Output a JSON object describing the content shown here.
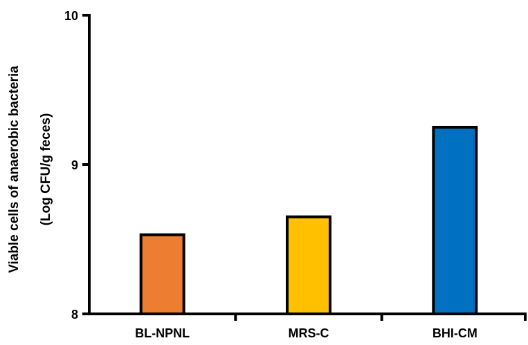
{
  "chart_data": {
    "type": "bar",
    "title": "",
    "xlabel": "",
    "ylabel_line1": "Viable cells of  anaerobic  bacteria",
    "ylabel_line2": "(Log CFU/g feces)",
    "categories": [
      "BL-NPNL",
      "MRS-C",
      "BHI-CM"
    ],
    "values": [
      8.53,
      8.65,
      9.25
    ],
    "colors": [
      "#ED7D31",
      "#FFC000",
      "#0070C0"
    ],
    "ylim": [
      8,
      10
    ],
    "yticks": [
      "8",
      "9",
      "10"
    ],
    "grid": false,
    "legend": "none"
  }
}
